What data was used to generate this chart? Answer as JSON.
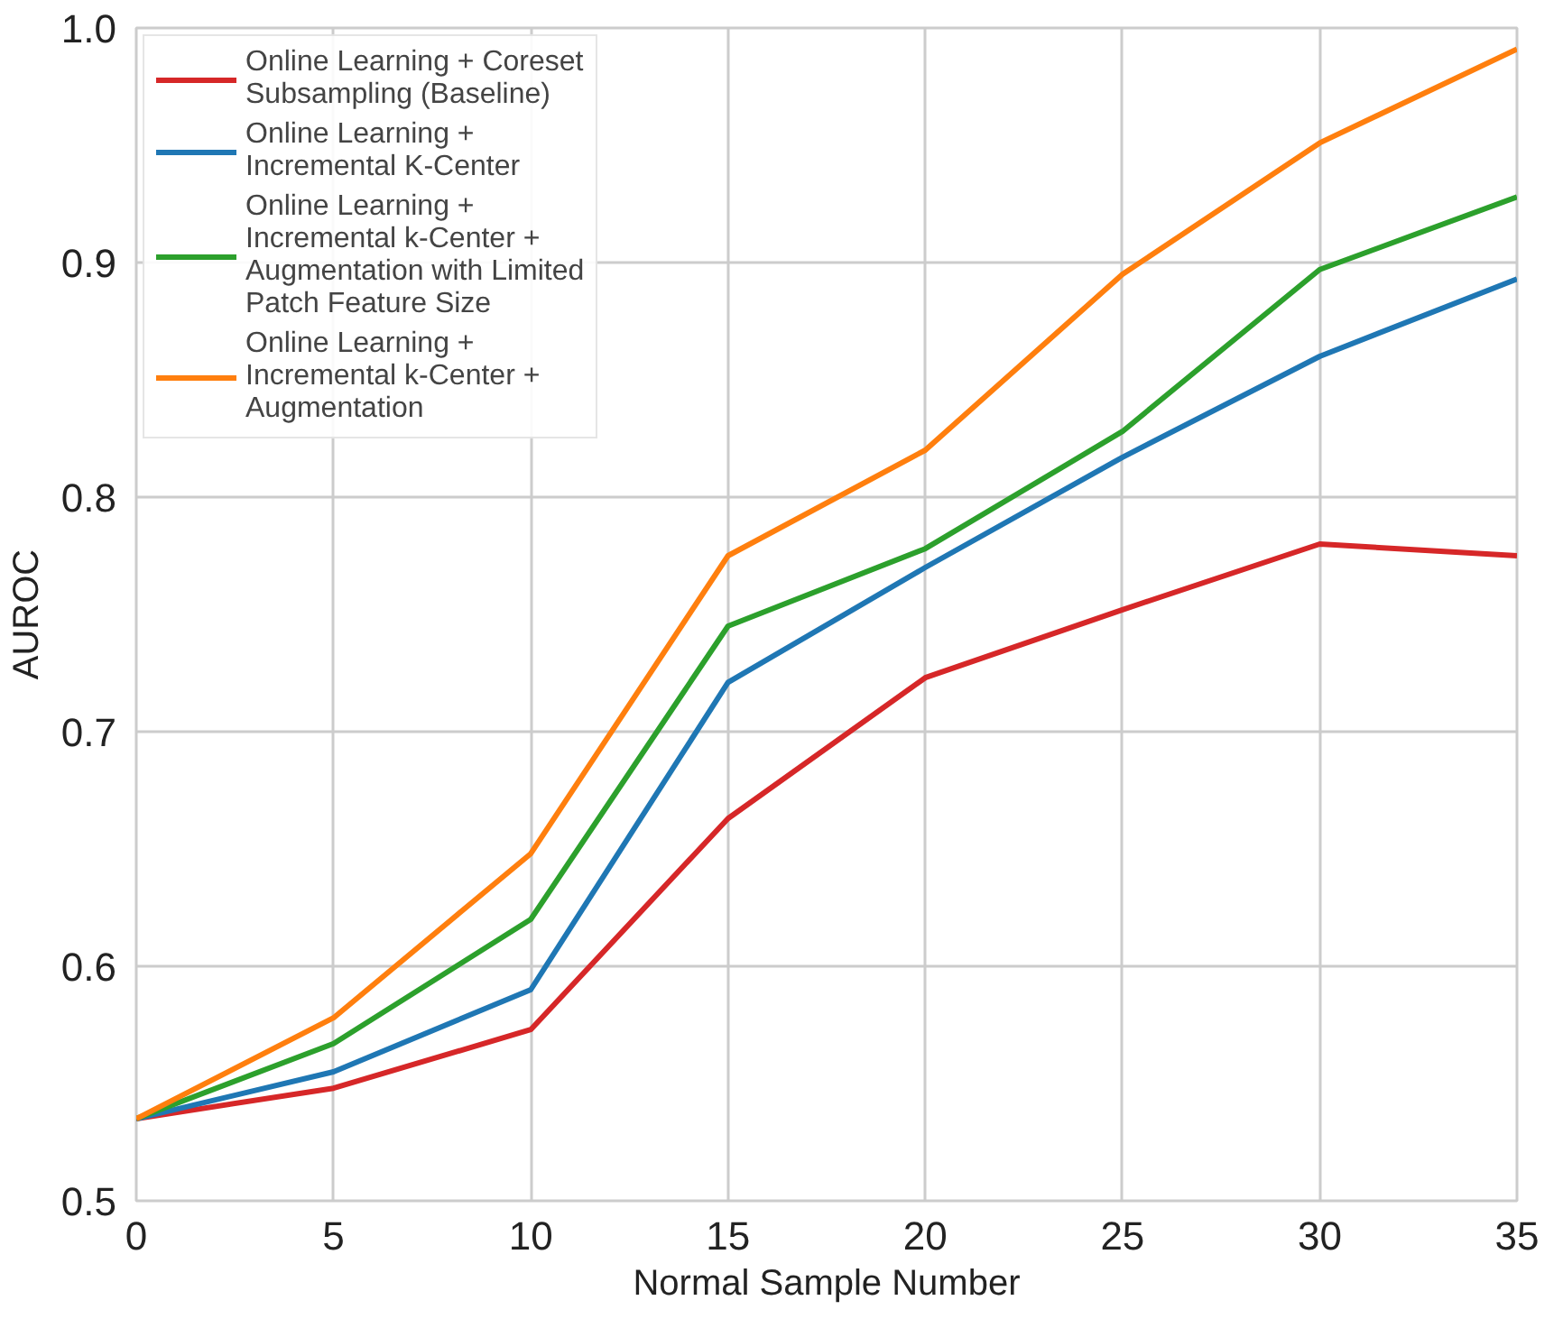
{
  "chart_data": {
    "type": "line",
    "xlabel": "Normal Sample Number",
    "ylabel": "AUROC",
    "x": [
      0,
      5,
      10,
      15,
      20,
      25,
      30,
      35
    ],
    "series": [
      {
        "name": "Online Learning + Coreset Subsampling (Baseline)",
        "color": "#d62728",
        "values": [
          0.535,
          0.548,
          0.573,
          0.663,
          0.723,
          0.752,
          0.78,
          0.775
        ]
      },
      {
        "name": "Online Learning + Incremental K-Center",
        "color": "#1f77b4",
        "values": [
          0.535,
          0.555,
          0.59,
          0.721,
          0.77,
          0.817,
          0.86,
          0.893
        ]
      },
      {
        "name": "Online Learning + Incremental k-Center + Augmentation with Limited Patch Feature Size",
        "color": "#2ca02c",
        "values": [
          0.535,
          0.567,
          0.62,
          0.745,
          0.778,
          0.828,
          0.897,
          0.928
        ]
      },
      {
        "name": "Online Learning + Incremental k-Center + Augmentation",
        "color": "#ff7f0e",
        "values": [
          0.535,
          0.578,
          0.648,
          0.775,
          0.82,
          0.895,
          0.951,
          0.991
        ]
      }
    ],
    "xlim": [
      0,
      35
    ],
    "xticks": [
      0,
      5,
      10,
      15,
      20,
      25,
      30,
      35
    ],
    "ylim": [
      0.5,
      1.0
    ],
    "yticks": [
      0.5,
      0.6,
      0.7,
      0.8,
      0.9,
      {
        "value": 1.0,
        "label": "1.0"
      }
    ],
    "grid": true,
    "legend": "top left",
    "line_style": "solid",
    "marker": "none"
  }
}
